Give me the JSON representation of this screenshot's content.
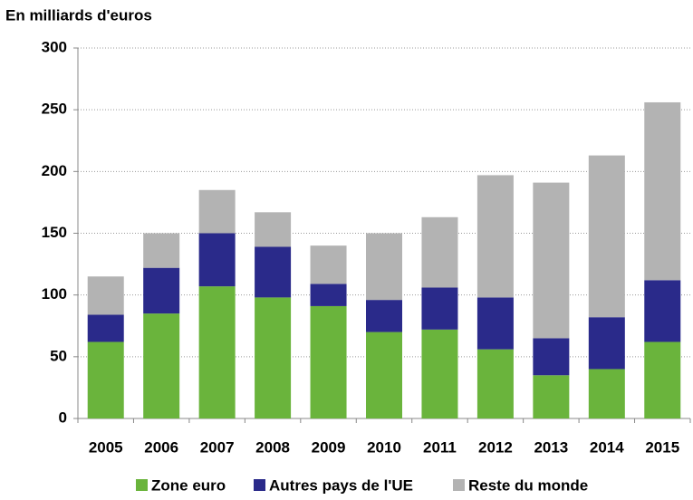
{
  "chart_data": {
    "type": "stacked_bar",
    "subtitle": "En milliards d'euros",
    "categories": [
      "2005",
      "2006",
      "2007",
      "2008",
      "2009",
      "2010",
      "2011",
      "2012",
      "2013",
      "2014",
      "2015"
    ],
    "series": [
      {
        "name": "Zone euro",
        "color": "#6ab43c",
        "values": [
          62,
          85,
          107,
          98,
          91,
          70,
          72,
          56,
          35,
          40,
          62
        ]
      },
      {
        "name": "Autres pays de l'UE",
        "color": "#2a2a8a",
        "values": [
          22,
          37,
          43,
          41,
          18,
          26,
          34,
          42,
          30,
          42,
          50
        ]
      },
      {
        "name": "Reste du monde",
        "color": "#b3b3b3",
        "values": [
          31,
          28,
          35,
          28,
          31,
          54,
          57,
          99,
          126,
          131,
          144
        ]
      }
    ],
    "ylim": [
      0,
      300
    ],
    "yticks": [
      0,
      50,
      100,
      150,
      200,
      250,
      300
    ],
    "grid": true
  }
}
